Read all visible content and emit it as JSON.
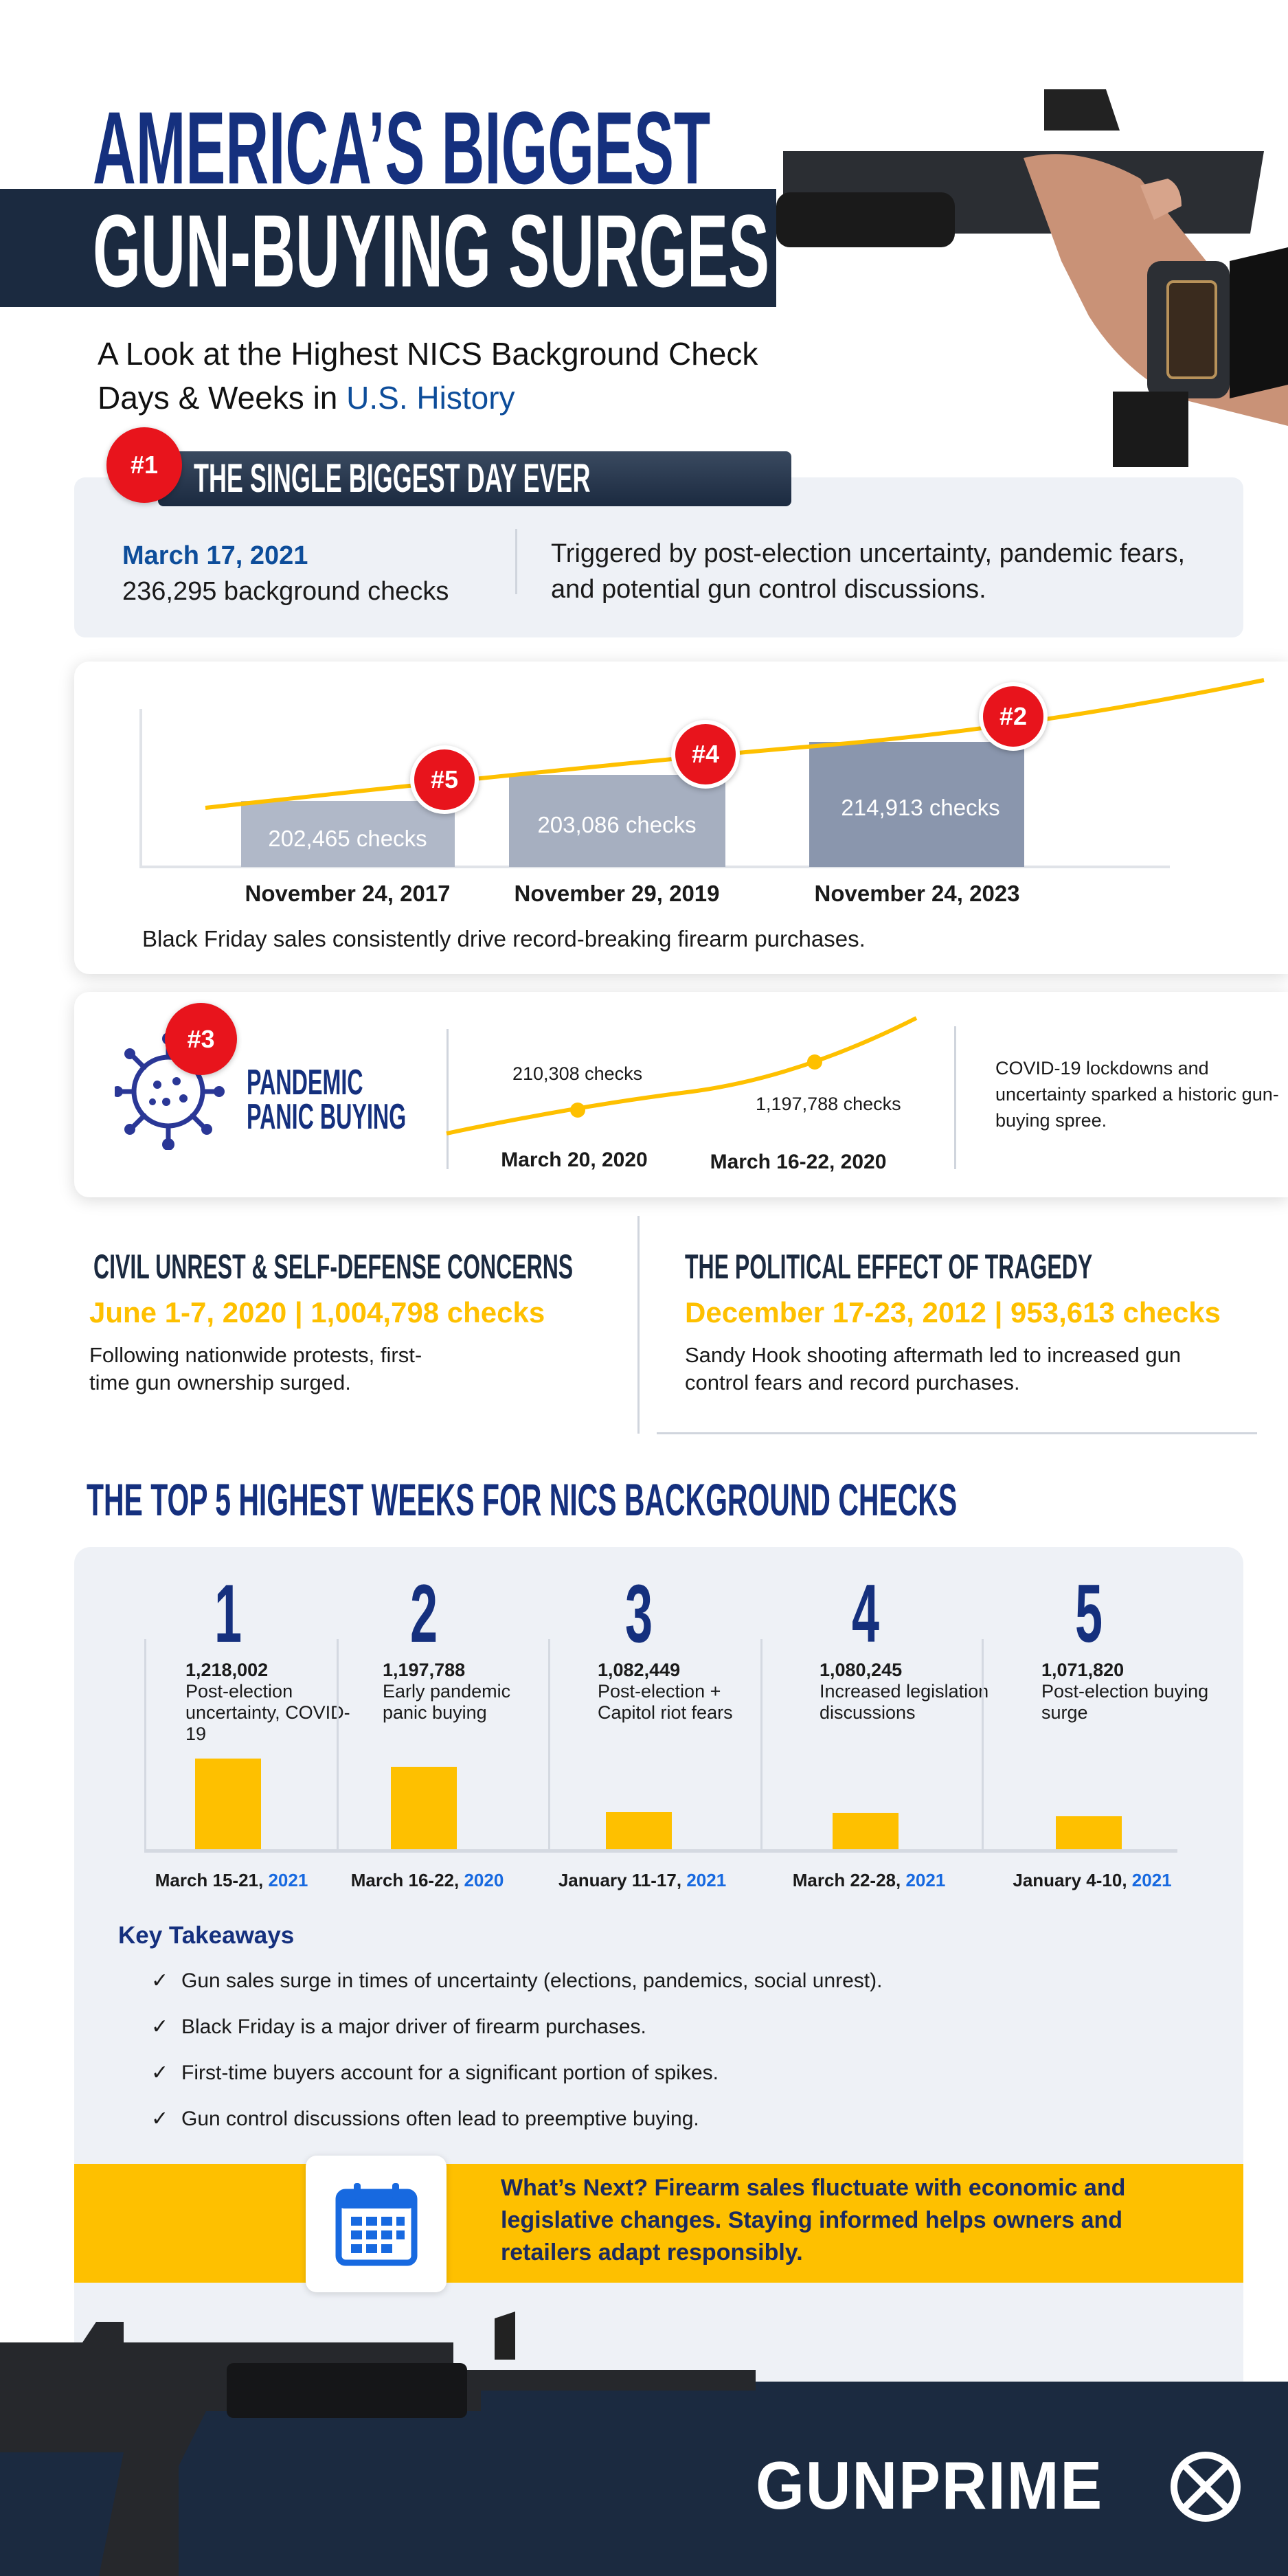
{
  "header": {
    "title_line1": "AMERICA’S BIGGEST",
    "title_line2": "GUN-BUYING SURGES",
    "subtitle_line1": "A Look at the Highest NICS Background Check",
    "subtitle_line2_prefix": "Days & Weeks in ",
    "subtitle_line2_highlight": "U.S. History"
  },
  "biggest_day": {
    "badge": "#1",
    "title": "THE SINGLE BIGGEST DAY EVER",
    "date": "March 17, 2021",
    "checks": "236,295 background checks",
    "description": "Triggered by post-election uncertainty, pandemic fears, and potential gun control discussions."
  },
  "black_friday": {
    "bars": [
      {
        "badge": "#5",
        "label": "202,465  checks",
        "date": "November 24, 2017"
      },
      {
        "badge": "#4",
        "label": "203,086 checks",
        "date": "November 29, 2019"
      },
      {
        "badge": "#2",
        "label": "214,913 checks",
        "date": "November 24, 2023"
      }
    ],
    "caption": "Black Friday sales consistently drive record-breaking firearm purchases."
  },
  "pandemic": {
    "badge": "#3",
    "title_line1": "PANDEMIC",
    "title_line2": "PANIC BUYING",
    "point1_label": "210,308 checks",
    "point1_date": "March 20, 2020",
    "point2_label": "1,197,788 checks",
    "point2_date": "March 16-22, 2020",
    "description": "COVID-19 lockdowns and uncertainty sparked a historic gun-buying spree."
  },
  "civil_unrest": {
    "title": "CIVIL UNREST & SELF-DEFENSE CONCERNS",
    "stat": "June 1-7, 2020 | 1,004,798 checks",
    "description_line1": "Following nationwide protests, first-",
    "description_line2": "time gun ownership surged."
  },
  "tragedy": {
    "title": "THE POLITICAL EFFECT OF TRAGEDY",
    "stat": "December 17-23, 2012 | 953,613 checks",
    "description_line1": "Sandy Hook shooting aftermath led to increased gun",
    "description_line2": "control fears and record purchases."
  },
  "chart_data": {
    "type": "bar",
    "title": "THE TOP 5 HIGHEST WEEKS FOR NICS BACKGROUND CHECKS",
    "categories": [
      "March 15-21, 2021",
      "March 16-22, 2020",
      "January 11-17, 2021",
      "March 22-28, 2021",
      "January 4-10, 2021"
    ],
    "items": [
      {
        "rank": "1",
        "value": 1218002,
        "value_label": "1,218,002",
        "reason": "Post-election uncertainty, COVID-19",
        "date": "March 15-21, ",
        "year": "2021"
      },
      {
        "rank": "2",
        "value": 1197788,
        "value_label": "1,197,788",
        "reason": "Early pandemic panic buying",
        "date": "March 16-22, ",
        "year": "2020"
      },
      {
        "rank": "3",
        "value": 1082449,
        "value_label": "1,082,449",
        "reason": "Post-election + Capitol riot fears",
        "date": "January 11-17, ",
        "year": "2021"
      },
      {
        "rank": "4",
        "value": 1080245,
        "value_label": "1,080,245",
        "reason": "Increased legislation discussions",
        "date": "March 22-28, ",
        "year": "2021"
      },
      {
        "rank": "5",
        "value": 1071820,
        "value_label": "1,071,820",
        "reason": "Post-election buying surge",
        "date": "January 4-10, ",
        "year": "2021"
      }
    ],
    "bar_color": "#fec000"
  },
  "takeaways": {
    "title": "Key Takeaways",
    "check": "✓",
    "items": [
      "Gun sales surge in times of uncertainty (elections, pandemics, social unrest).",
      "Black Friday is a major driver of firearm purchases.",
      "First-time buyers account for a significant portion of spikes.",
      "Gun control discussions often lead to preemptive buying."
    ]
  },
  "whats_next": {
    "icon": "calendar-icon",
    "line1": "What’s Next? Firearm sales fluctuate with economic and",
    "line2": "legislative changes. Staying informed helps owners and",
    "line3": "retailers adapt responsibly."
  },
  "footer": {
    "logo": "GUNPRIME"
  },
  "colors": {
    "navy": "#1b2a40",
    "blue": "#15307e",
    "yellow": "#fec000",
    "red": "#e8141c",
    "panel": "#eef1f6"
  }
}
